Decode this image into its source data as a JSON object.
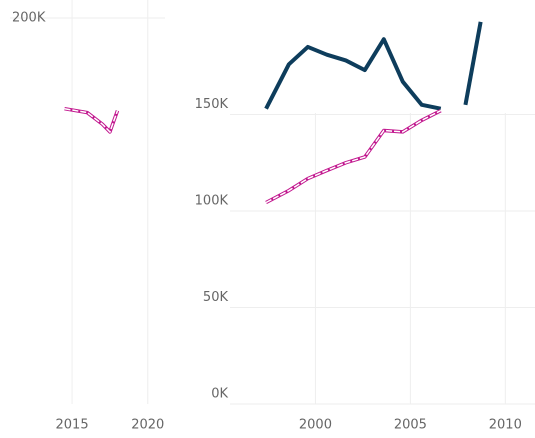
{
  "chart_data": [
    {
      "type": "line",
      "x": [
        2014.5,
        2016,
        2017,
        2017.5,
        2018
      ],
      "series": [
        {
          "color": "#c2188f",
          "values": [
            153000,
            151000,
            145000,
            141000,
            152000
          ]
        }
      ],
      "xlim": [
        2010.9,
        2021.8
      ],
      "xticks": [
        2015,
        2020
      ],
      "ylim": [
        0,
        200000
      ],
      "yticks": [
        {
          "value": 200000,
          "label": "200K"
        }
      ],
      "grid": true
    },
    {
      "type": "line",
      "x": [
        1997.4,
        1998.6,
        1999.6,
        2000.6,
        2001.6,
        2002.6,
        2003.6,
        2004.6,
        2005.6,
        2006.6,
        2007.2,
        2007.9,
        2008.7
      ],
      "series": [
        {
          "color": "#0e3d5c",
          "values": [
            153000,
            176000,
            185000,
            181000,
            178000,
            173000,
            189000,
            167000,
            155000,
            153000,
            null,
            155000,
            198000
          ]
        },
        {
          "color": "#c2188f",
          "values": [
            104400,
            110600,
            116800,
            121000,
            125000,
            128000,
            141700,
            141000,
            147000,
            152000,
            null,
            null,
            null
          ]
        }
      ],
      "xlim": [
        1995.5,
        2011.3
      ],
      "xticks": [
        2000,
        2005,
        2010
      ],
      "ylim": [
        0,
        200000
      ],
      "yticks": [
        {
          "value": 0,
          "label": "0K"
        },
        {
          "value": 50000,
          "label": "50K"
        },
        {
          "value": 100000,
          "label": "100K"
        },
        {
          "value": 150000,
          "label": "150K"
        }
      ],
      "grid": true
    }
  ]
}
